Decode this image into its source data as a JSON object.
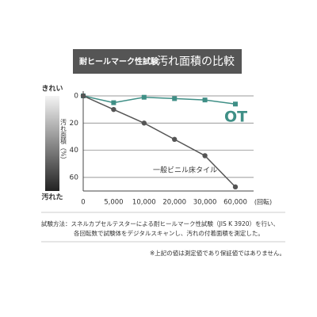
{
  "chart_data": {
    "type": "line",
    "title": "耐ヒールマーク性試験",
    "subtitle": "汚れ面積の比較",
    "y_label": "汚れ面積（%）",
    "y_top_label": "きれい",
    "y_bottom_label": "汚れた",
    "x_unit": "(回転)",
    "categories": [
      "0",
      "5,000",
      "10,000",
      "20,000",
      "30,000",
      "60,000"
    ],
    "series": [
      {
        "name": "OT",
        "color": "#3f8f86",
        "marker": "square",
        "values": [
          0,
          5,
          1,
          2,
          3,
          6
        ]
      },
      {
        "name": "一般ビニル床タイル",
        "color": "#555555",
        "marker": "circle",
        "values": [
          0,
          10,
          20,
          32,
          44,
          67
        ]
      }
    ],
    "ylim": [
      0,
      70
    ],
    "yticks": [
      0,
      20,
      40,
      60
    ],
    "inverted_y": true,
    "grid": true,
    "notes": [
      "試験方法：スネルカプセルテスターによる耐ヒールマーク性試験（JIS K 3920）を行い、",
      "各回転数で試験体をデジタルスキャンし、汚れの付着面積を測定した。"
    ],
    "footnote": "※上記の値は測定値であり保証値ではありません。"
  }
}
